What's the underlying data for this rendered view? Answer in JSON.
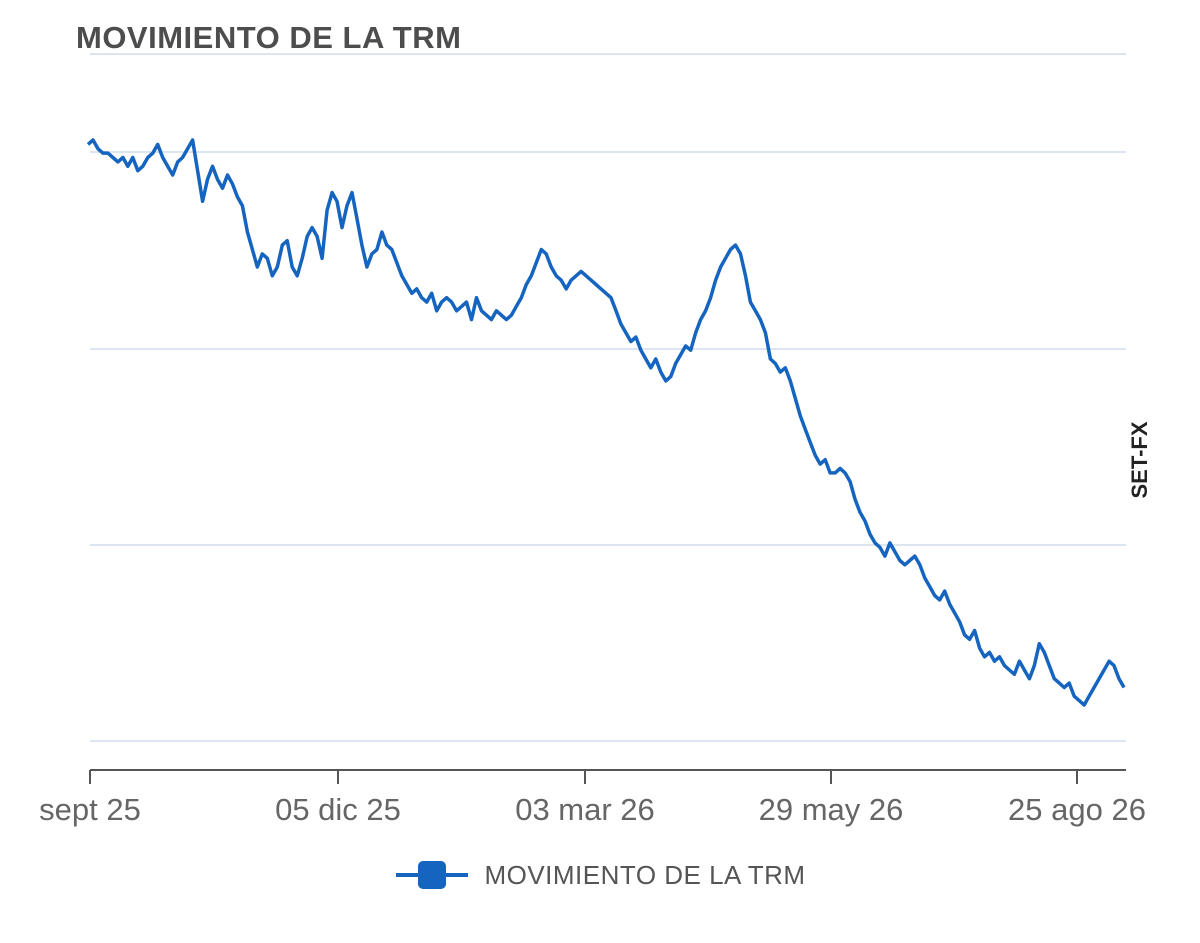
{
  "chart_data": {
    "type": "line",
    "title": "MOVIMIENTO DE LA TRM",
    "side_label": "SET-FX",
    "xlabel": "",
    "ylabel": "",
    "x_ticks": [
      "sept 25",
      "05 dic 25",
      "03 mar 26",
      "29 may 26",
      "25 ago 26"
    ],
    "y_tick_labels_shown": false,
    "grid": "horizontal",
    "legend": "bottom-center",
    "color": "#1565c0",
    "series": [
      {
        "name": "MOVIMIENTO DE LA TRM",
        "x_start": "2025-09-07",
        "note_units": "relative level (y-axis values not printed)",
        "values": [
          0.96,
          0.97,
          0.95,
          0.94,
          0.94,
          0.93,
          0.92,
          0.93,
          0.91,
          0.93,
          0.9,
          0.91,
          0.93,
          0.94,
          0.96,
          0.93,
          0.91,
          0.89,
          0.92,
          0.93,
          0.95,
          0.97,
          0.9,
          0.83,
          0.88,
          0.91,
          0.88,
          0.86,
          0.89,
          0.87,
          0.84,
          0.82,
          0.76,
          0.72,
          0.68,
          0.71,
          0.7,
          0.66,
          0.68,
          0.73,
          0.74,
          0.68,
          0.66,
          0.7,
          0.75,
          0.77,
          0.75,
          0.7,
          0.81,
          0.85,
          0.83,
          0.77,
          0.82,
          0.85,
          0.79,
          0.73,
          0.68,
          0.71,
          0.72,
          0.76,
          0.73,
          0.72,
          0.69,
          0.66,
          0.64,
          0.62,
          0.63,
          0.61,
          0.6,
          0.62,
          0.58,
          0.6,
          0.61,
          0.6,
          0.58,
          0.59,
          0.6,
          0.56,
          0.61,
          0.58,
          0.57,
          0.56,
          0.58,
          0.57,
          0.56,
          0.57,
          0.59,
          0.61,
          0.64,
          0.66,
          0.69,
          0.72,
          0.71,
          0.68,
          0.66,
          0.65,
          0.63,
          0.65,
          0.66,
          0.67,
          0.66,
          0.65,
          0.64,
          0.63,
          0.62,
          0.61,
          0.58,
          0.55,
          0.53,
          0.51,
          0.52,
          0.49,
          0.47,
          0.45,
          0.47,
          0.44,
          0.42,
          0.43,
          0.46,
          0.48,
          0.5,
          0.49,
          0.53,
          0.56,
          0.58,
          0.61,
          0.65,
          0.68,
          0.7,
          0.72,
          0.73,
          0.71,
          0.66,
          0.6,
          0.58,
          0.56,
          0.53,
          0.47,
          0.46,
          0.44,
          0.45,
          0.42,
          0.38,
          0.34,
          0.31,
          0.28,
          0.25,
          0.23,
          0.24,
          0.21,
          0.21,
          0.22,
          0.21,
          0.19,
          0.15,
          0.12,
          0.1,
          0.07,
          0.05,
          0.04,
          0.02,
          0.05,
          0.03,
          0.01,
          0.0,
          0.01,
          0.02,
          0.0,
          -0.03,
          -0.05,
          -0.07,
          -0.08,
          -0.06,
          -0.09,
          -0.11,
          -0.13,
          -0.16,
          -0.17,
          -0.15,
          -0.19,
          -0.21,
          -0.2,
          -0.22,
          -0.21,
          -0.23,
          -0.24,
          -0.25,
          -0.22,
          -0.24,
          -0.26,
          -0.23,
          -0.18,
          -0.2,
          -0.23,
          -0.26,
          -0.27,
          -0.28,
          -0.27,
          -0.3,
          -0.31,
          -0.32,
          -0.3,
          -0.28,
          -0.26,
          -0.24,
          -0.22,
          -0.23,
          -0.26,
          -0.28
        ]
      }
    ]
  },
  "legend": {
    "label": "MOVIMIENTO DE LA TRM"
  }
}
